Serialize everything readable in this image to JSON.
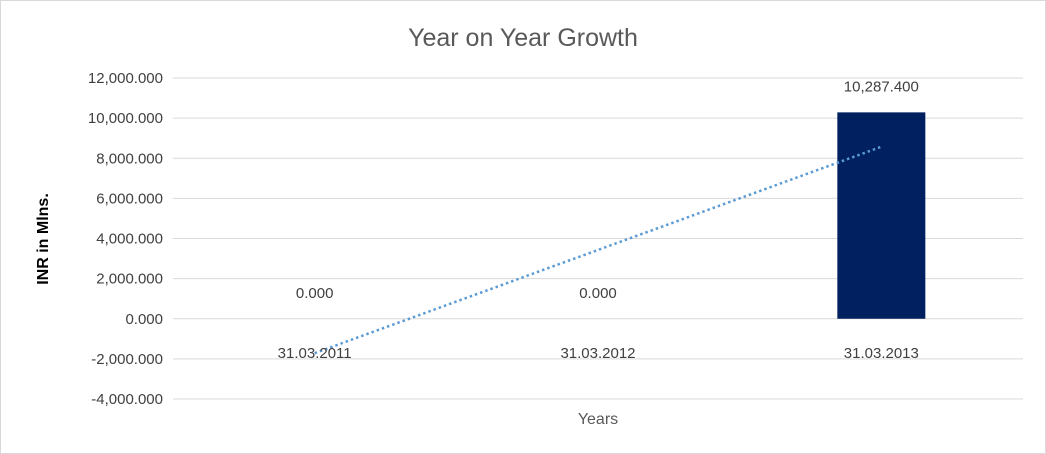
{
  "chart_data": {
    "type": "bar",
    "title": "Year on Year Growth",
    "xlabel": "Years",
    "ylabel": "INR in Mlns.",
    "categories": [
      "31.03.2011",
      "31.03.2012",
      "31.03.2013"
    ],
    "values": [
      0,
      0,
      10287.4
    ],
    "data_labels": [
      "0.000",
      "0.000",
      "10,287.400"
    ],
    "ylim": [
      -4000,
      12000
    ],
    "yticks": [
      12000,
      10000,
      8000,
      6000,
      4000,
      2000,
      0,
      -2000,
      -4000
    ],
    "ytick_labels": [
      "12,000.000",
      "10,000.000",
      "8,000.000",
      "6,000.000",
      "4,000.000",
      "2,000.000",
      "0.000",
      "-2,000.000",
      "-4,000.000"
    ],
    "grid": true,
    "trendline": {
      "type": "linear",
      "style": "dotted",
      "start": -1714.6,
      "end": 8572.8
    },
    "colors": {
      "bar": "#002060",
      "trendline": "#5b9bd5",
      "grid": "#d9d9d9"
    }
  }
}
